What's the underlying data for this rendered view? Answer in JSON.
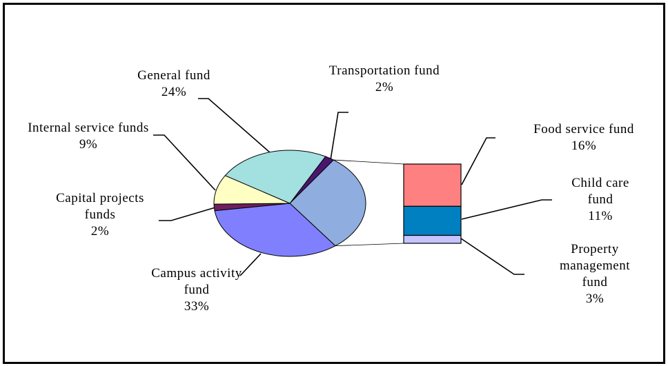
{
  "chart_data": {
    "type": "pie-of-bar",
    "pie": {
      "categories": [
        "Transportation fund",
        null,
        "Campus activity fund",
        "Capital projects funds",
        "Internal service funds",
        "General fund"
      ],
      "values": [
        2,
        30,
        33,
        2,
        9,
        24
      ],
      "value_labels": [
        "2%",
        null,
        "33%",
        "2%",
        "9%",
        "24%"
      ],
      "colors": [
        "#4b1670",
        "#8fadde",
        "#8080ff",
        "#6e1f5c",
        "#ffffc4",
        "#a3e0e0"
      ]
    },
    "bar": {
      "categories": [
        "Food service fund",
        "Child care fund",
        "Property management fund"
      ],
      "values": [
        16,
        11,
        3
      ],
      "value_labels": [
        "16%",
        "11%",
        "3%"
      ],
      "colors": [
        "#ff8080",
        "#0080c0",
        "#c4c4ff"
      ]
    }
  }
}
